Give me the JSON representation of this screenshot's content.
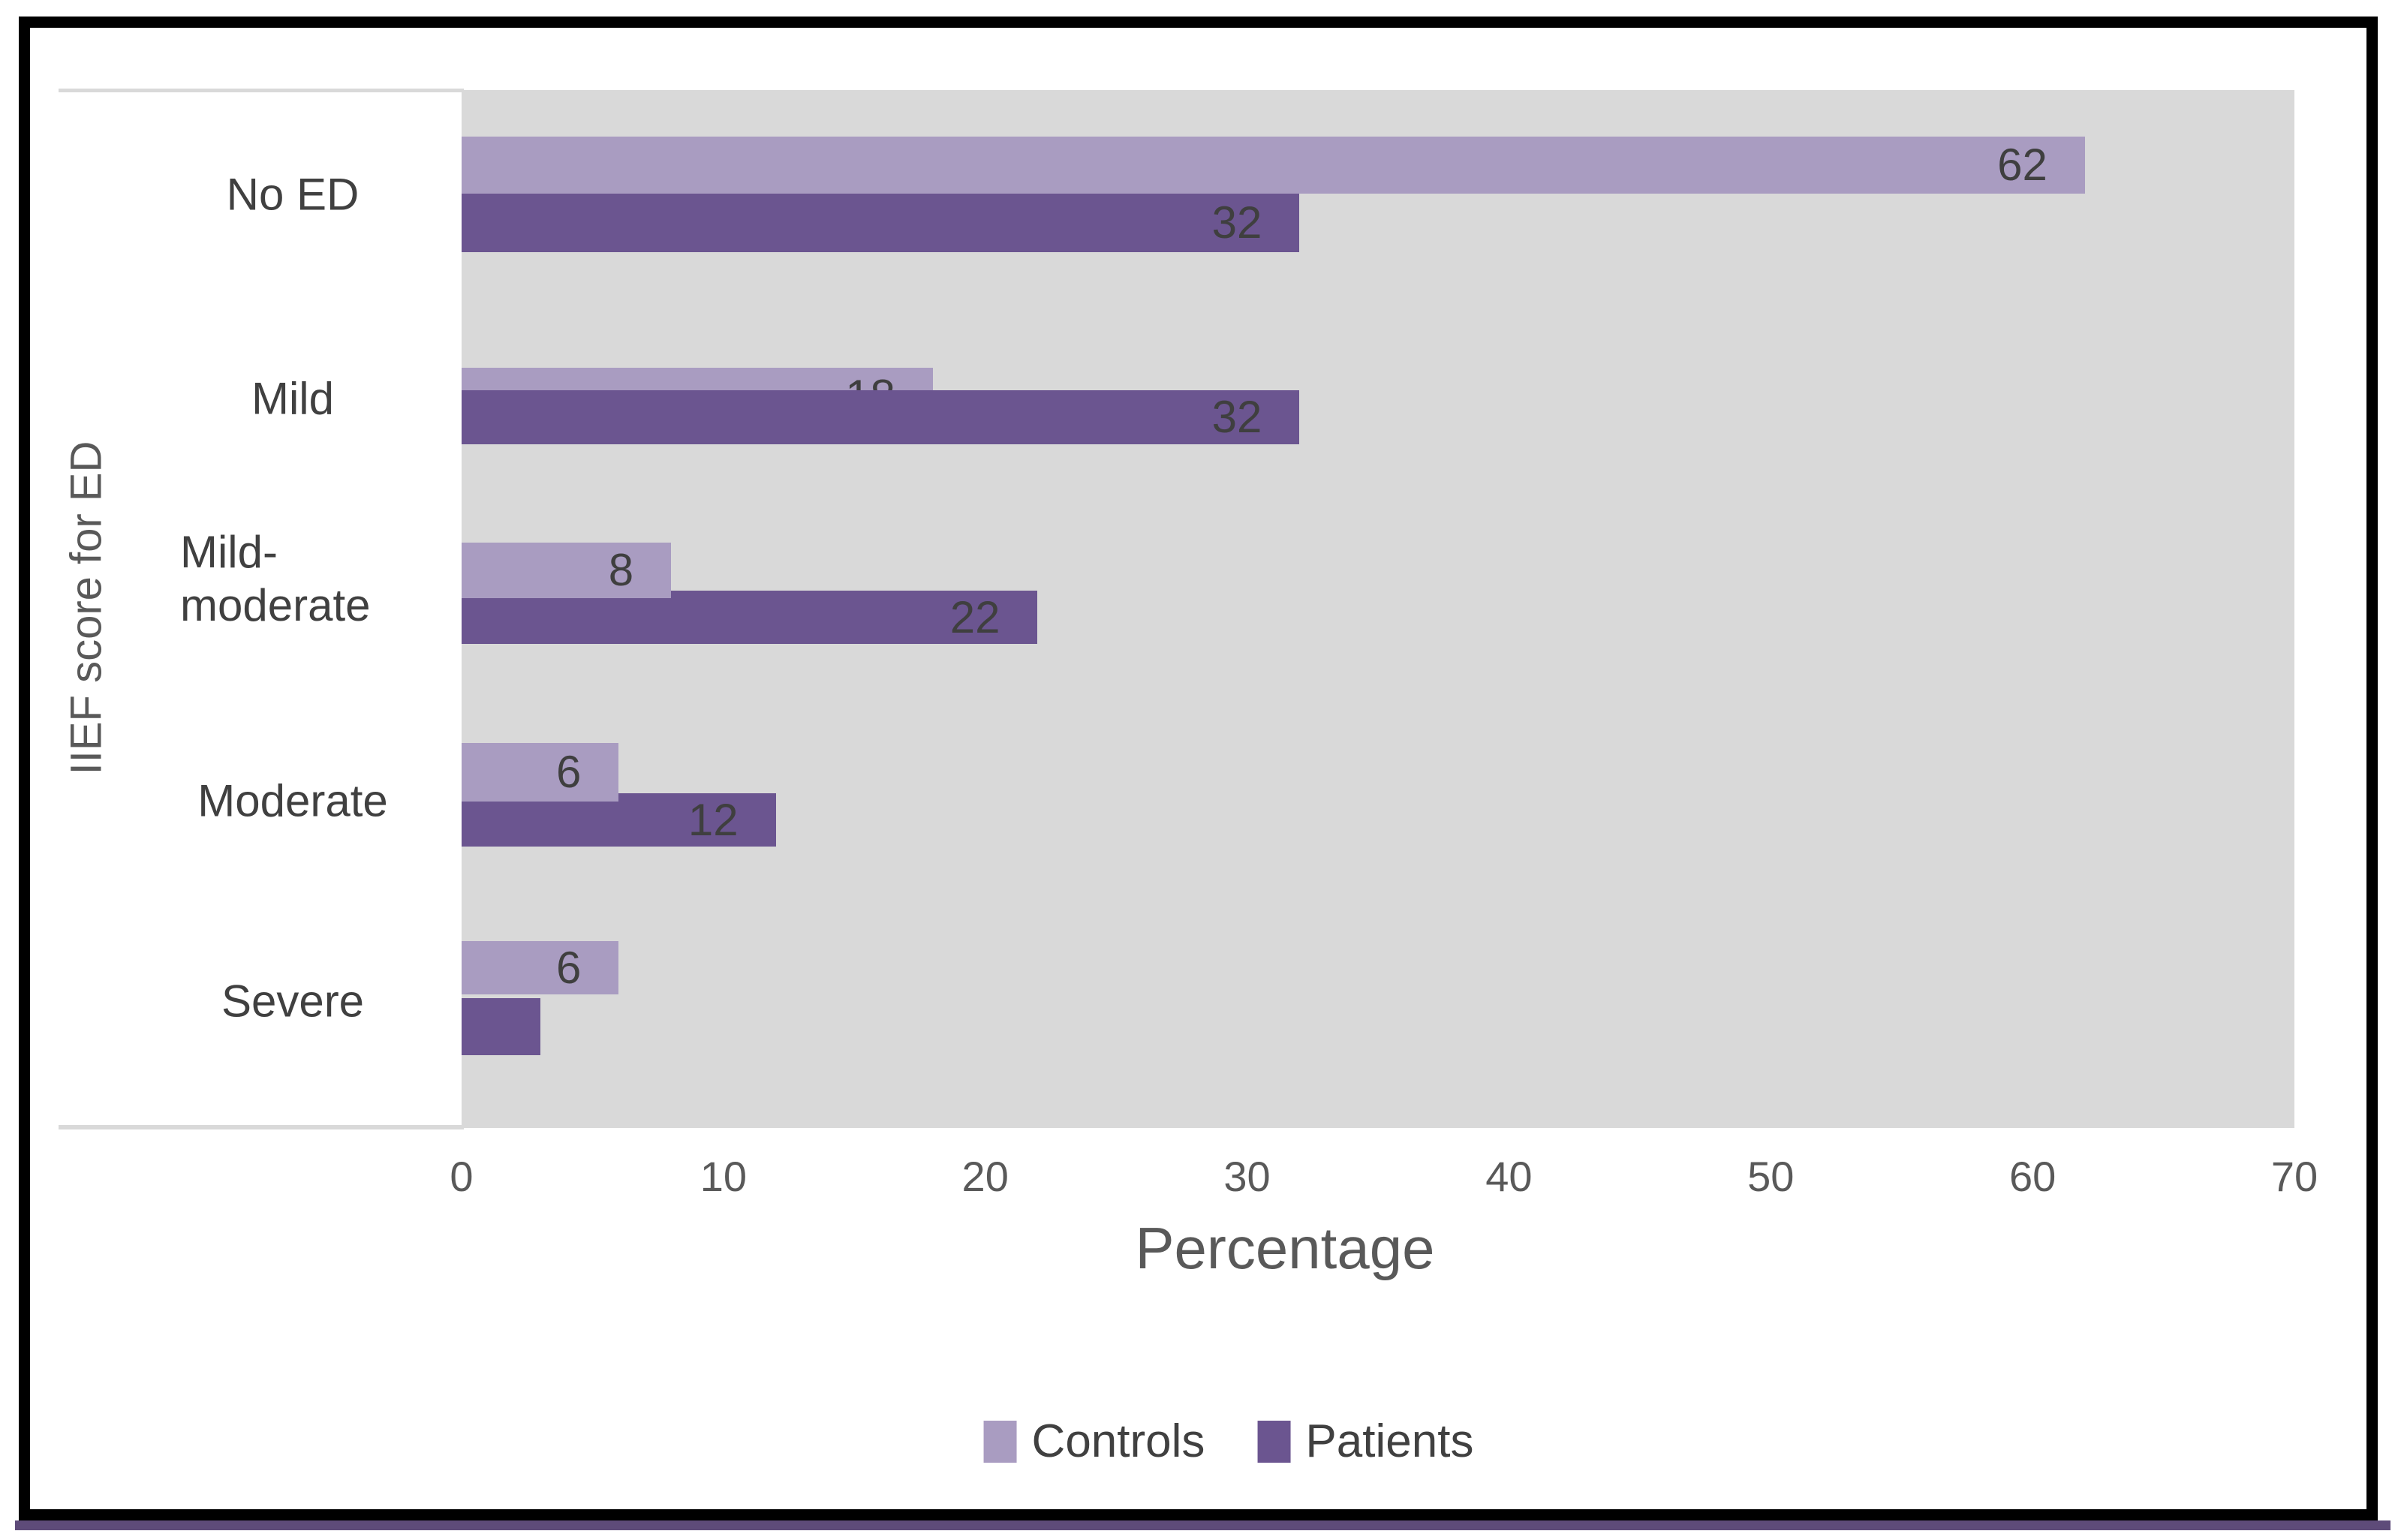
{
  "figure": {
    "y_axis_title": "IIEF score for ED",
    "x_axis_title": "Percentage",
    "x_ticks": [
      "0",
      "10",
      "20",
      "30",
      "40",
      "50",
      "60",
      "70"
    ]
  },
  "chart_data": {
    "type": "bar",
    "orientation": "horizontal",
    "title": "",
    "xlabel": "Percentage",
    "ylabel": "IIEF score for ED",
    "xlim": [
      0,
      70
    ],
    "grid": false,
    "legend_position": "bottom",
    "plot_bg": "#d9d9d9",
    "categories": [
      "No ED",
      "Mild",
      "Mild-moderate",
      "Moderate",
      "Severe"
    ],
    "series": [
      {
        "name": "Controls",
        "color": "#a99cc1",
        "values": [
          62,
          18,
          8,
          6,
          6
        ],
        "value_labels": [
          "62",
          "18",
          "8",
          "6",
          "6"
        ]
      },
      {
        "name": "Patients",
        "color": "#6b5590",
        "values": [
          32,
          32,
          22,
          12,
          3
        ],
        "value_labels": [
          "32",
          "32",
          "22",
          "12",
          ""
        ]
      }
    ]
  },
  "colors": {
    "frame_border": "#000000",
    "accent_strip": "#5e4b79",
    "plot_background": "#d9d9d9",
    "data_label_text": "#3f3f3f",
    "axis_text": "#595959",
    "category_text": "#404040"
  }
}
